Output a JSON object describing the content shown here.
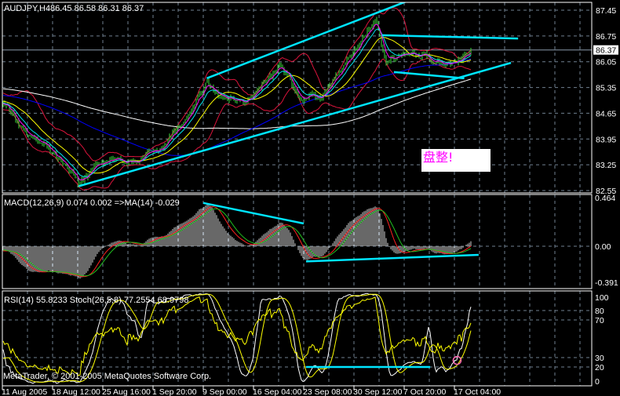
{
  "header": {
    "symbol_timeframe": "AUDJPY,H4",
    "ohlc": "86.45 86.58 86.31 86.37"
  },
  "panels": {
    "macd_label": "MACD(12,26,9) 0.074 0.002  =>MA(14) -0.029",
    "rsi_label": "RSI(14) 55.8233  Stoch(26,5,8) 77.2554 68.9798"
  },
  "copyright": "MetaTrader, © 2001-2005 MetaQuotes Software Corp.",
  "annotation": {
    "text": "盘整!",
    "color": "#ff00ff"
  },
  "current_price_label": "86.37",
  "colors": {
    "background": "#000000",
    "bars": "#3cdc3c",
    "grid": "#708090",
    "ma_fast": "#ff00ff",
    "ma_mid": "#00e5ee",
    "ma_slow": "#ffff00",
    "ma_long": "#0000ff",
    "ma_longest": "#ffffff",
    "bollinger": "#dc143c",
    "trendline": "#00e5ff",
    "macd_hist": "#d0d0d0",
    "macd_signal": "#ff2020",
    "macd_ma": "#20c020",
    "rsi": "#ffff00",
    "stoch_main": "#ffffff",
    "stoch_signal": "#ffff00"
  },
  "chart_data": [
    {
      "type": "candlestick",
      "title": "AUDJPY,H4",
      "y_ticks": [
        "87.45",
        "86.75",
        "86.05",
        "85.35",
        "84.65",
        "83.95",
        "83.25",
        "82.55"
      ],
      "ylim": [
        82.55,
        87.45
      ],
      "current_price": 86.37,
      "x_ticks": [
        "11 Aug 2005",
        "18 Aug 12:00",
        "25 Aug 16:00",
        "1 Sep 20:00",
        "9 Sep 00:00",
        "16 Sep 04:00",
        "23 Sep 08:00",
        "30 Sep 12:00",
        "7 Oct 20:00",
        "17 Oct 04:00"
      ],
      "grid": true,
      "close_path": [
        [
          "2005-08-11 04:00",
          84.95
        ],
        [
          "2005-08-15 08:00",
          84.0
        ],
        [
          "2005-08-17 16:00",
          83.68
        ],
        [
          "2005-08-22 06:00",
          82.78
        ],
        [
          "2005-08-25 16:00",
          83.36
        ],
        [
          "2005-08-29 00:00",
          83.25
        ],
        [
          "2005-09-02 12:00",
          83.68
        ],
        [
          "2005-09-07 00:00",
          84.53
        ],
        [
          "2005-09-09 12:00",
          85.49
        ],
        [
          "2005-09-11 12:00",
          85.06
        ],
        [
          "2005-09-16 00:00",
          85.06
        ],
        [
          "2005-09-20 00:00",
          85.91
        ],
        [
          "2005-09-22 20:00",
          85.06
        ],
        [
          "2005-09-26 04:00",
          85.17
        ],
        [
          "2005-09-29 12:00",
          86.02
        ],
        [
          "2005-10-03 12:00",
          87.19
        ],
        [
          "2005-10-05 04:00",
          86.13
        ],
        [
          "2005-10-09 00:00",
          86.23
        ],
        [
          "2005-10-12 16:00",
          86.15
        ],
        [
          "2005-10-16 08:00",
          86.02
        ],
        [
          "2005-10-20 12:00",
          86.37
        ]
      ],
      "indicators": [
        "MA fast (magenta)",
        "MA mid (cyan)",
        "MA slow (yellow)",
        "MA long (blue)",
        "MA longest (white)",
        "Bollinger Bands (red)"
      ],
      "trendlines": [
        {
          "from": [
            "2005-09-09 12:00",
            85.6
          ],
          "to": [
            "2005-10-09 00:00",
            87.73
          ]
        },
        {
          "from": [
            "2005-08-22 06:00",
            82.67
          ],
          "to": [
            "2005-10-27 16:00",
            86.02
          ]
        },
        {
          "from": [
            "2005-10-04 14:00",
            86.77
          ],
          "to": [
            "2005-10-29 00:00",
            86.68
          ]
        },
        {
          "from": [
            "2005-10-06 08:00",
            85.77
          ],
          "to": [
            "2005-10-19 00:00",
            85.6
          ]
        }
      ]
    },
    {
      "type": "bar",
      "title": "MACD(12,26,9) 0.074 0.002  =>MA(14) -0.029",
      "y_ticks": [
        "0.464",
        "0.00",
        "-0.391"
      ],
      "ylim": [
        -0.391,
        0.464
      ],
      "trendlines": [
        {
          "from": [
            "2005-09-09 00:00",
            0.4
          ],
          "to": [
            "2005-09-23 08:00",
            0.21
          ]
        },
        {
          "from": [
            "2005-09-23 16:00",
            -0.14
          ],
          "to": [
            "2005-10-21 16:00",
            -0.08
          ]
        }
      ]
    },
    {
      "type": "line",
      "title": "RSI(14) 55.8233  Stoch(26,5,8) 77.2554 68.9798",
      "y_ticks": [
        "100",
        "80",
        "70",
        "30",
        "20",
        "0"
      ],
      "ylim": [
        0,
        100
      ],
      "trendlines": [
        {
          "from": [
            "2005-09-23 16:00",
            20
          ],
          "to": [
            "2005-10-12 16:00",
            20
          ]
        }
      ],
      "marker": {
        "date": "2005-10-17 16:00",
        "value": 27,
        "color": "#ff69b4"
      }
    }
  ]
}
